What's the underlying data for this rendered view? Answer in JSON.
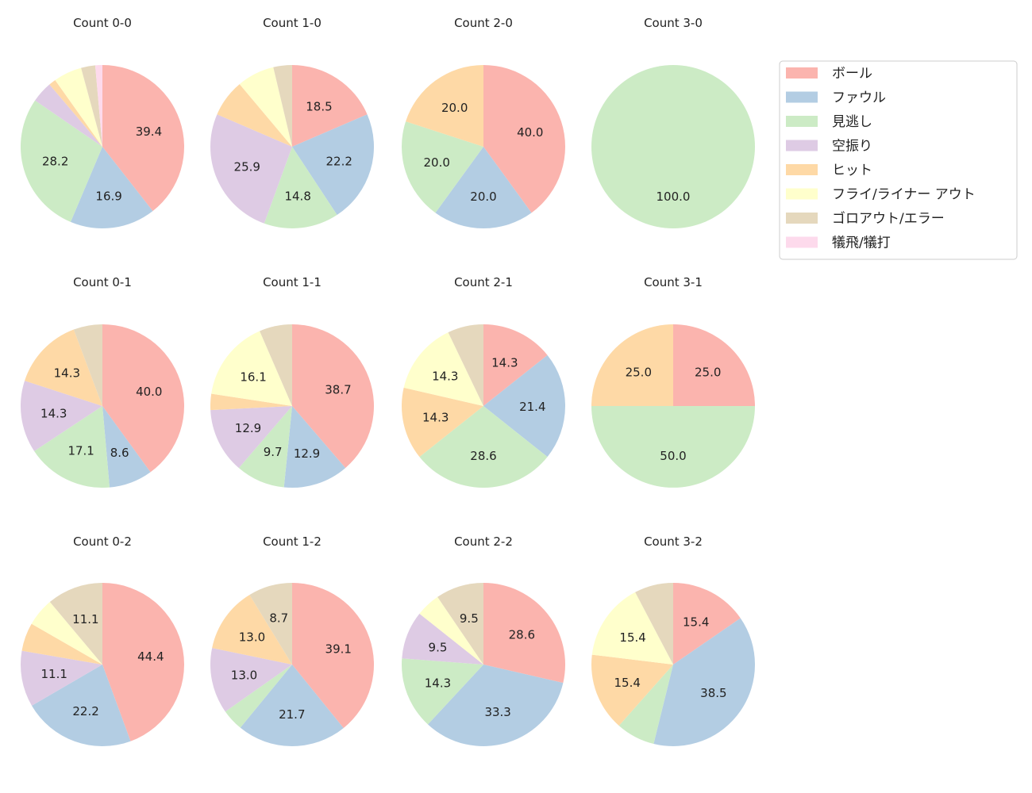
{
  "chart_data": {
    "type": "pie",
    "legend": {
      "placement": "top-right",
      "entries": [
        "ボール",
        "ファウル",
        "見逃し",
        "空振り",
        "ヒット",
        "フライ/ライナー アウト",
        "ゴロアウト/エラー",
        "犠飛/犠打"
      ]
    },
    "colors": [
      "#fbb4ae",
      "#b3cde3",
      "#ccebc5",
      "#decbe4",
      "#fed9a6",
      "#ffffcc",
      "#e5d8bd",
      "#fddaec"
    ],
    "label_min_percent": 8,
    "charts": [
      {
        "title": "Count 0-0",
        "values": [
          39.4,
          16.9,
          28.2,
          4.2,
          1.4,
          5.6,
          2.8,
          1.4
        ]
      },
      {
        "title": "Count 1-0",
        "values": [
          18.5,
          22.2,
          14.8,
          25.9,
          7.4,
          7.4,
          3.7,
          0
        ]
      },
      {
        "title": "Count 2-0",
        "values": [
          40.0,
          20.0,
          20.0,
          0,
          20.0,
          0,
          0,
          0
        ]
      },
      {
        "title": "Count 3-0",
        "values": [
          0,
          0,
          100.0,
          0,
          0,
          0,
          0,
          0
        ]
      },
      {
        "title": "Count 0-1",
        "values": [
          40.0,
          8.6,
          17.1,
          14.3,
          14.3,
          0,
          5.7,
          0
        ]
      },
      {
        "title": "Count 1-1",
        "values": [
          38.7,
          12.9,
          9.7,
          12.9,
          3.2,
          16.1,
          6.5,
          0
        ]
      },
      {
        "title": "Count 2-1",
        "values": [
          14.3,
          21.4,
          28.6,
          0,
          14.3,
          14.3,
          7.1,
          0
        ]
      },
      {
        "title": "Count 3-1",
        "values": [
          25.0,
          0,
          50.0,
          0,
          25.0,
          0,
          0,
          0
        ]
      },
      {
        "title": "Count 0-2",
        "values": [
          44.4,
          22.2,
          0,
          11.1,
          5.6,
          5.6,
          11.1,
          0
        ]
      },
      {
        "title": "Count 1-2",
        "values": [
          39.1,
          21.7,
          4.3,
          13.0,
          13.0,
          0,
          8.7,
          0
        ]
      },
      {
        "title": "Count 2-2",
        "values": [
          28.6,
          33.3,
          14.3,
          9.5,
          0,
          4.8,
          9.5,
          0
        ]
      },
      {
        "title": "Count 3-2",
        "values": [
          15.4,
          38.5,
          7.7,
          0,
          15.4,
          15.4,
          7.7,
          0
        ]
      }
    ]
  }
}
